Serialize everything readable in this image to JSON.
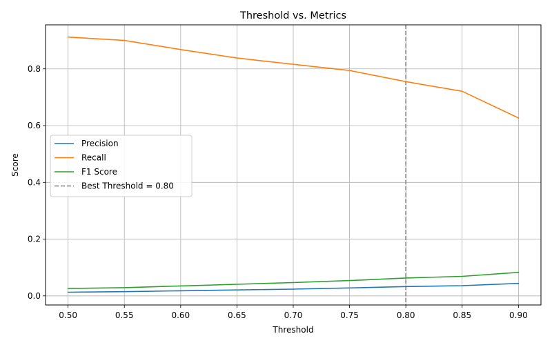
{
  "chart_data": {
    "type": "line",
    "title": "Threshold vs. Metrics",
    "xlabel": "Threshold",
    "ylabel": "Score",
    "x": [
      0.5,
      0.55,
      0.6,
      0.65,
      0.7,
      0.75,
      0.8,
      0.85,
      0.9
    ],
    "xticks": [
      "0.50",
      "0.55",
      "0.60",
      "0.65",
      "0.70",
      "0.75",
      "0.80",
      "0.85",
      "0.90"
    ],
    "yticks": [
      "0.0",
      "0.2",
      "0.4",
      "0.6",
      "0.8"
    ],
    "ytick_values": [
      0.0,
      0.2,
      0.4,
      0.6,
      0.8
    ],
    "xlim": [
      0.48,
      0.92
    ],
    "ylim": [
      -0.032,
      0.955
    ],
    "grid": true,
    "legend_position": "center-left",
    "series": [
      {
        "name": "Precision",
        "color": "#1f77b4",
        "values": [
          0.013,
          0.015,
          0.018,
          0.021,
          0.024,
          0.028,
          0.033,
          0.036,
          0.044
        ]
      },
      {
        "name": "Recall",
        "color": "#ff7f0e",
        "values": [
          0.912,
          0.9,
          0.868,
          0.838,
          0.816,
          0.794,
          0.755,
          0.721,
          0.627
        ]
      },
      {
        "name": "F1 Score",
        "color": "#2ca02c",
        "values": [
          0.026,
          0.029,
          0.035,
          0.041,
          0.047,
          0.054,
          0.063,
          0.069,
          0.083
        ]
      }
    ],
    "reference_line": {
      "label": "Best Threshold = 0.80",
      "x": 0.8,
      "color": "#808080"
    }
  }
}
